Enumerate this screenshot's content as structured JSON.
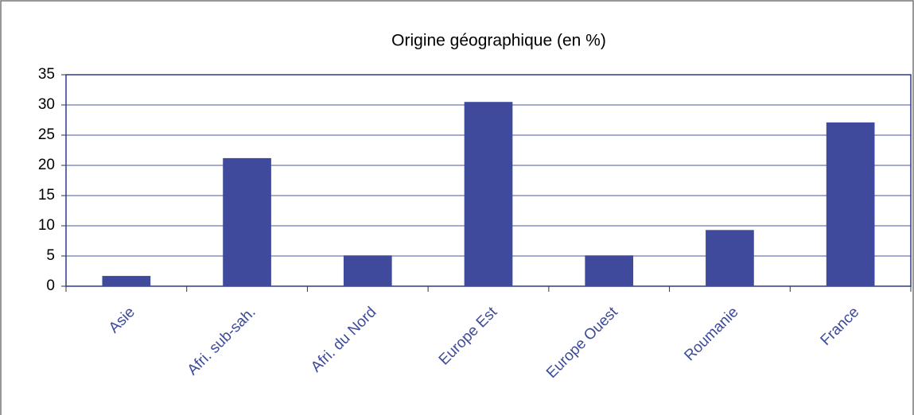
{
  "chart_data": {
    "type": "bar",
    "title": "Origine géographique (en %)",
    "categories": [
      "Asie",
      "Afri. sub-sah.",
      "Afri. du Nord",
      "Europe Est",
      "Europe Ouest",
      "Roumanie",
      "France"
    ],
    "values": [
      1.7,
      21.2,
      5.1,
      30.5,
      5.1,
      9.3,
      27.1
    ],
    "color": "#3f4a9c",
    "ylim": [
      0,
      35
    ],
    "yticks": [
      0,
      5,
      10,
      15,
      20,
      25,
      30,
      35
    ],
    "grid": true
  }
}
